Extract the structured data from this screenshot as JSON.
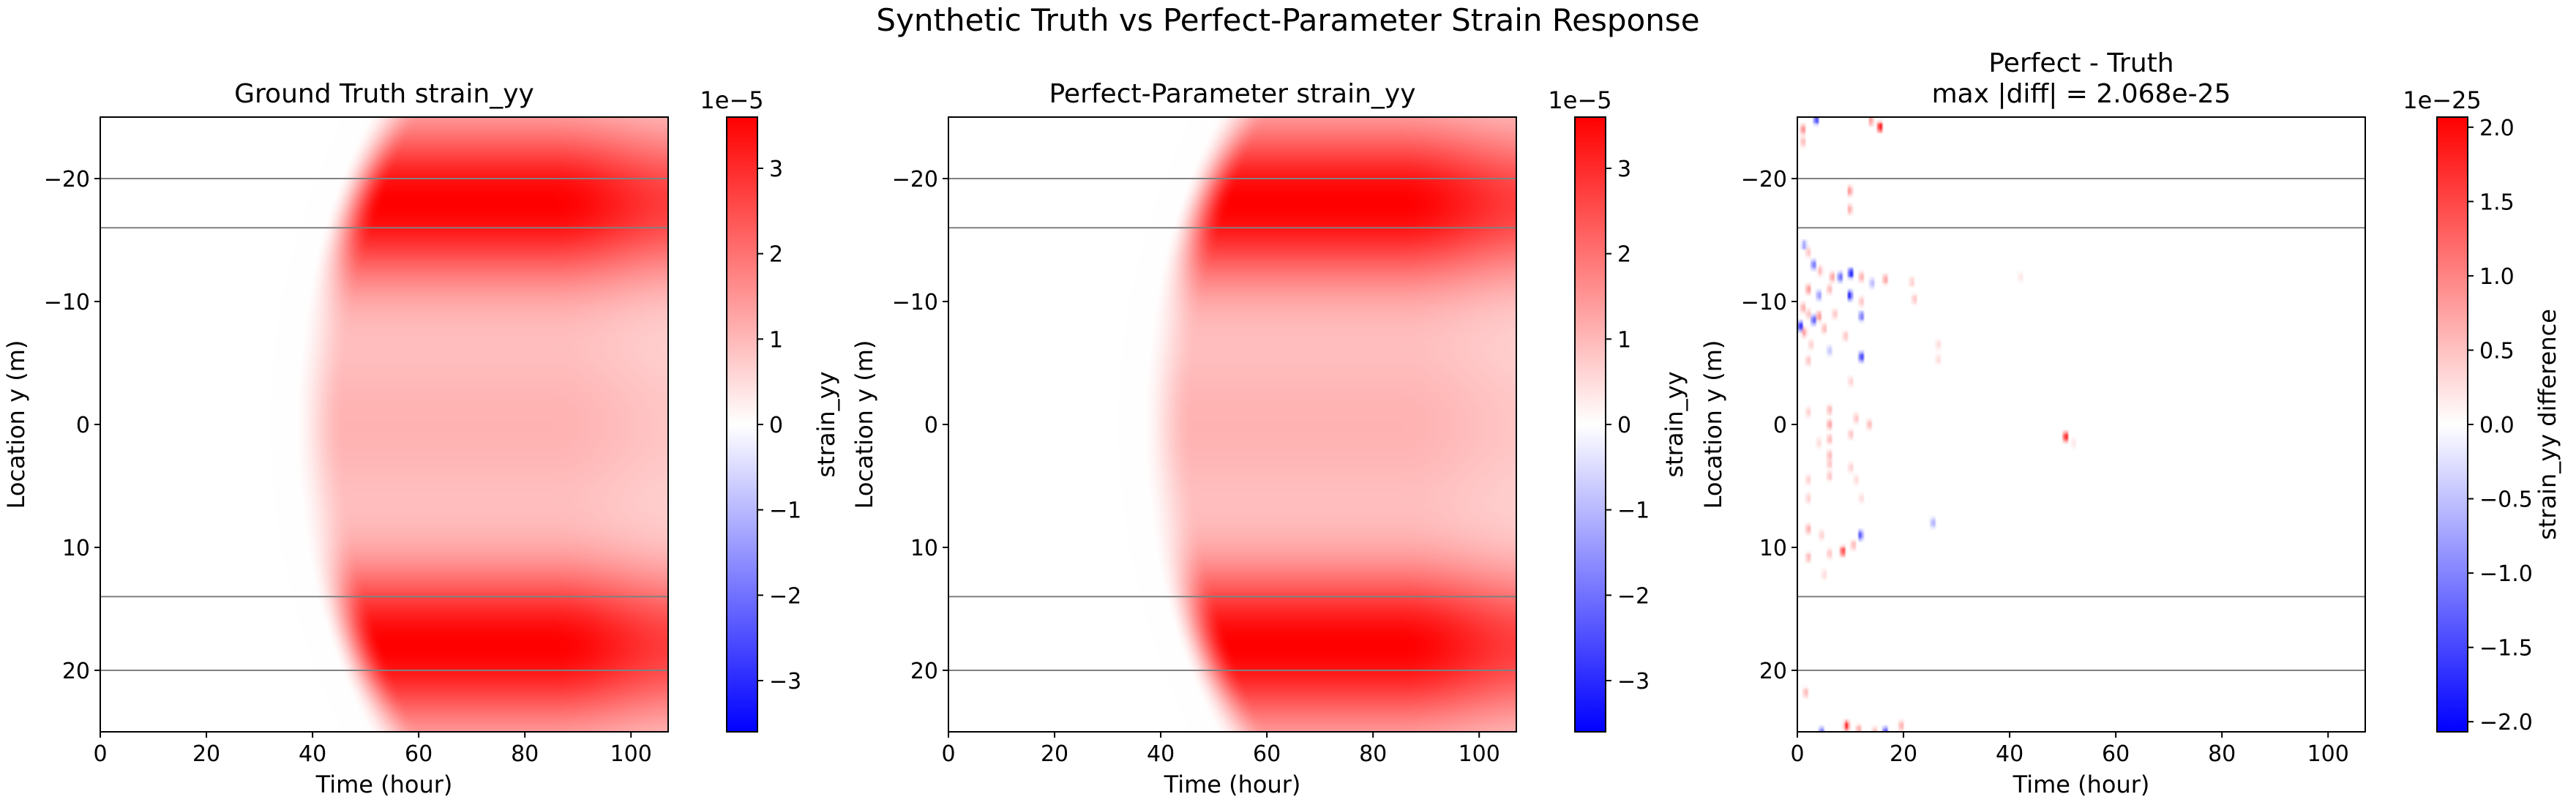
{
  "figure": {
    "suptitle": "Synthetic Truth vs Perfect-Parameter Strain Response"
  },
  "chart_data": [
    {
      "type": "heatmap",
      "title": "Ground Truth strain_yy",
      "xlabel": "Time (hour)",
      "ylabel": "Location y (m)",
      "xlim": [
        0,
        107
      ],
      "ylim": [
        25,
        -25
      ],
      "xticks": [
        0,
        20,
        40,
        60,
        80,
        100
      ],
      "yticks": [
        -20,
        -10,
        0,
        10,
        20
      ],
      "hlines": [
        -20,
        -16,
        14,
        20
      ],
      "field": {
        "kind": "strain",
        "t_onset": 60,
        "t_ramp": 10,
        "arc_depth": 14,
        "peak": 3.6e-05,
        "undershoot": -1.2e-07
      },
      "colorbar": {
        "label": "strain_yy",
        "offset_text": "1e−5",
        "vmin": -3.6,
        "vmax": 3.6,
        "ticks": [
          -3,
          -2,
          -1,
          0,
          1,
          2,
          3
        ],
        "tick_labels": [
          "−3",
          "−2",
          "−1",
          "0",
          "1",
          "2",
          "3"
        ],
        "colormap": "bwr"
      },
      "grid": false
    },
    {
      "type": "heatmap",
      "title": "Perfect-Parameter strain_yy",
      "xlabel": "Time (hour)",
      "ylabel": "Location y (m)",
      "xlim": [
        0,
        107
      ],
      "ylim": [
        25,
        -25
      ],
      "xticks": [
        0,
        20,
        40,
        60,
        80,
        100
      ],
      "yticks": [
        -20,
        -10,
        0,
        10,
        20
      ],
      "hlines": [
        -20,
        -16,
        14,
        20
      ],
      "field": {
        "kind": "strain",
        "t_onset": 60,
        "t_ramp": 10,
        "arc_depth": 14,
        "peak": 3.6e-05,
        "undershoot": -1.2e-07
      },
      "colorbar": {
        "label": "strain_yy",
        "offset_text": "1e−5",
        "vmin": -3.6,
        "vmax": 3.6,
        "ticks": [
          -3,
          -2,
          -1,
          0,
          1,
          2,
          3
        ],
        "tick_labels": [
          "−3",
          "−2",
          "−1",
          "0",
          "1",
          "2",
          "3"
        ],
        "colormap": "bwr"
      },
      "grid": false
    },
    {
      "type": "heatmap",
      "title": "Perfect - Truth",
      "subtitle": "max |diff| = 2.068e-25",
      "xlabel": "Time (hour)",
      "ylabel": "Location y (m)",
      "xlim": [
        0,
        107
      ],
      "ylim": [
        25,
        -25
      ],
      "xticks": [
        0,
        20,
        40,
        60,
        80,
        100
      ],
      "yticks": [
        -20,
        -10,
        0,
        10,
        20
      ],
      "hlines": [
        -20,
        -16,
        14,
        20
      ],
      "field": {
        "kind": "diff",
        "cells": [
          {
            "t": 1.0,
            "y": -24.0,
            "v": 1.0
          },
          {
            "t": 3.5,
            "y": -24.8,
            "v": -1.6
          },
          {
            "t": 13.8,
            "y": -24.7,
            "v": 0.8
          },
          {
            "t": 15.5,
            "y": -24.2,
            "v": 2.06
          },
          {
            "t": 1.0,
            "y": -23.0,
            "v": 0.6
          },
          {
            "t": 9.8,
            "y": -19.0,
            "v": 0.9
          },
          {
            "t": 9.8,
            "y": -17.5,
            "v": 0.7
          },
          {
            "t": 1.2,
            "y": -14.6,
            "v": -0.8
          },
          {
            "t": 2.0,
            "y": -14.0,
            "v": 0.5
          },
          {
            "t": 3.0,
            "y": -13.0,
            "v": -1.2
          },
          {
            "t": 4.2,
            "y": -12.5,
            "v": 0.6
          },
          {
            "t": 6.5,
            "y": -12.0,
            "v": 0.8
          },
          {
            "t": 8.0,
            "y": -12.0,
            "v": -1.3
          },
          {
            "t": 10.0,
            "y": -12.3,
            "v": -2.0
          },
          {
            "t": 12.0,
            "y": -12.0,
            "v": 0.7
          },
          {
            "t": 14.0,
            "y": -11.5,
            "v": -0.6
          },
          {
            "t": 16.5,
            "y": -11.8,
            "v": 0.8
          },
          {
            "t": 21.5,
            "y": -11.6,
            "v": 0.4
          },
          {
            "t": 42.0,
            "y": -12.0,
            "v": 0.2
          },
          {
            "t": 2.0,
            "y": -11.0,
            "v": 0.9
          },
          {
            "t": 4.0,
            "y": -10.5,
            "v": -0.9
          },
          {
            "t": 6.0,
            "y": -11.0,
            "v": 0.6
          },
          {
            "t": 9.8,
            "y": -10.5,
            "v": -1.8
          },
          {
            "t": 12.0,
            "y": -10.0,
            "v": 0.5
          },
          {
            "t": 22.0,
            "y": -10.2,
            "v": 0.5
          },
          {
            "t": 1.0,
            "y": -9.5,
            "v": 0.7
          },
          {
            "t": 2.0,
            "y": -9.0,
            "v": 0.5
          },
          {
            "t": 3.0,
            "y": -8.5,
            "v": -1.4
          },
          {
            "t": 4.0,
            "y": -8.8,
            "v": 0.9
          },
          {
            "t": 7.0,
            "y": -9.0,
            "v": 0.5
          },
          {
            "t": 12.0,
            "y": -8.8,
            "v": -1.2
          },
          {
            "t": 0.5,
            "y": -8.0,
            "v": -1.9
          },
          {
            "t": 1.2,
            "y": -7.5,
            "v": 0.8
          },
          {
            "t": 5.0,
            "y": -7.8,
            "v": 0.6
          },
          {
            "t": 9.0,
            "y": -7.2,
            "v": 0.5
          },
          {
            "t": 2.5,
            "y": -6.5,
            "v": 0.4
          },
          {
            "t": 6.0,
            "y": -6.0,
            "v": -0.5
          },
          {
            "t": 26.5,
            "y": -6.5,
            "v": 0.3
          },
          {
            "t": 2.0,
            "y": -5.2,
            "v": 0.5
          },
          {
            "t": 12.0,
            "y": -5.5,
            "v": -1.7
          },
          {
            "t": 26.5,
            "y": -5.3,
            "v": 0.3
          },
          {
            "t": 10.0,
            "y": -3.5,
            "v": 0.4
          },
          {
            "t": 2.0,
            "y": -1.0,
            "v": 0.4
          },
          {
            "t": 6.0,
            "y": -1.2,
            "v": 0.6
          },
          {
            "t": 11.0,
            "y": -0.5,
            "v": 0.5
          },
          {
            "t": 13.5,
            "y": 0.0,
            "v": 0.6
          },
          {
            "t": 6.0,
            "y": 0.0,
            "v": 0.8
          },
          {
            "t": 6.0,
            "y": 1.2,
            "v": 0.6
          },
          {
            "t": 10.0,
            "y": 0.8,
            "v": 0.5
          },
          {
            "t": 4.0,
            "y": 1.5,
            "v": 0.3
          },
          {
            "t": 6.0,
            "y": 2.5,
            "v": 0.6
          },
          {
            "t": 50.5,
            "y": 1.0,
            "v": 1.95
          },
          {
            "t": 52.0,
            "y": 1.5,
            "v": 0.2
          },
          {
            "t": 6.0,
            "y": 3.2,
            "v": 0.5
          },
          {
            "t": 10.0,
            "y": 3.5,
            "v": 0.4
          },
          {
            "t": 2.0,
            "y": 4.5,
            "v": 0.4
          },
          {
            "t": 6.0,
            "y": 4.2,
            "v": 0.5
          },
          {
            "t": 11.0,
            "y": 4.5,
            "v": 0.3
          },
          {
            "t": 2.0,
            "y": 6.0,
            "v": 0.4
          },
          {
            "t": 12.0,
            "y": 6.0,
            "v": 0.3
          },
          {
            "t": 25.5,
            "y": 8.0,
            "v": -0.7
          },
          {
            "t": 2.0,
            "y": 8.5,
            "v": 0.7
          },
          {
            "t": 4.5,
            "y": 9.0,
            "v": 0.4
          },
          {
            "t": 11.8,
            "y": 9.0,
            "v": -1.4
          },
          {
            "t": 2.0,
            "y": 10.8,
            "v": 0.6
          },
          {
            "t": 6.0,
            "y": 10.5,
            "v": 0.5
          },
          {
            "t": 8.5,
            "y": 10.3,
            "v": 1.6
          },
          {
            "t": 10.5,
            "y": 9.8,
            "v": 0.6
          },
          {
            "t": 5.0,
            "y": 12.2,
            "v": 0.3
          },
          {
            "t": 1.5,
            "y": 21.8,
            "v": 0.6
          },
          {
            "t": 9.2,
            "y": 24.5,
            "v": 1.8
          },
          {
            "t": 11.5,
            "y": 24.8,
            "v": 0.7
          },
          {
            "t": 14.5,
            "y": 25.0,
            "v": 0.6
          },
          {
            "t": 19.5,
            "y": 24.5,
            "v": 0.7
          },
          {
            "t": 4.5,
            "y": 25.0,
            "v": -1.2
          },
          {
            "t": 16.5,
            "y": 25.0,
            "v": -1.6
          }
        ]
      },
      "colorbar": {
        "label": "strain_yy difference",
        "offset_text": "1e−25",
        "vmin": -2.068,
        "vmax": 2.068,
        "ticks": [
          -2.0,
          -1.5,
          -1.0,
          -0.5,
          0.0,
          0.5,
          1.0,
          1.5,
          2.0
        ],
        "tick_labels": [
          "−2.0",
          "−1.5",
          "−1.0",
          "−0.5",
          "0.0",
          "0.5",
          "1.0",
          "1.5",
          "2.0"
        ],
        "colormap": "bwr"
      },
      "grid": false
    }
  ]
}
